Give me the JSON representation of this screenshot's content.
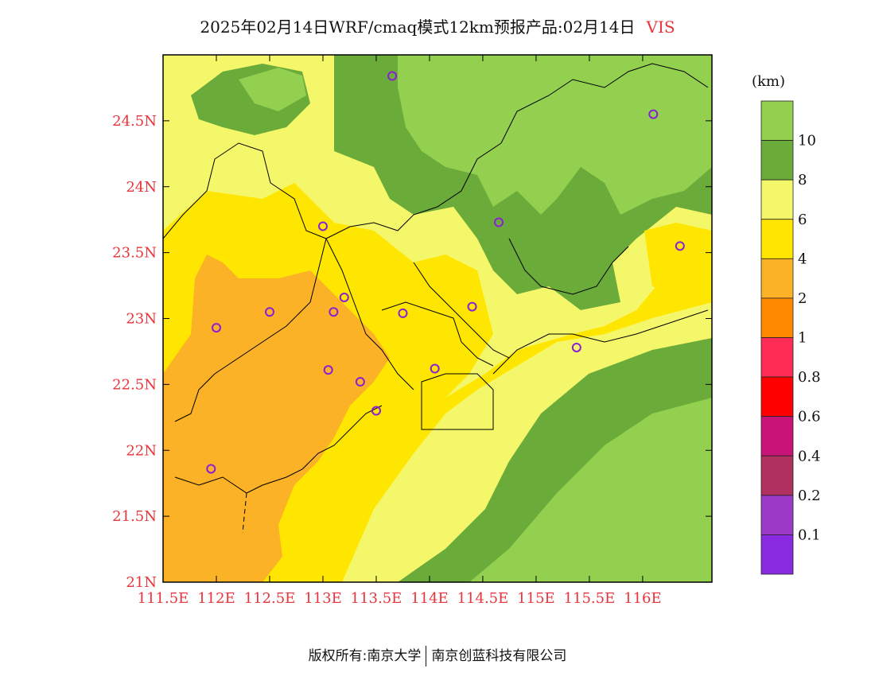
{
  "title": {
    "text": "2025年02月14日WRF/cmaq模式12km预报产品:02月14日",
    "variable": "VIS"
  },
  "colors": {
    "accent": "#e8343a",
    "tick_labels": "#e8343a"
  },
  "map": {
    "lon_range": [
      111.5,
      116.65
    ],
    "lat_range": [
      21.0,
      25.0
    ],
    "lon_ticks": [
      111.5,
      112,
      112.5,
      113,
      113.5,
      114,
      114.5,
      115,
      115.5,
      116
    ],
    "lon_tick_labels": [
      "111.5E",
      "112E",
      "112.5E",
      "113E",
      "113.5E",
      "114E",
      "114.5E",
      "115E",
      "115.5E",
      "116E"
    ],
    "lat_ticks": [
      21,
      21.5,
      22,
      22.5,
      23,
      23.5,
      24,
      24.5
    ],
    "lat_tick_labels": [
      "21N",
      "21.5N",
      "22N",
      "22.5N",
      "23N",
      "23.5N",
      "24N",
      "24.5N"
    ],
    "stations": [
      {
        "lon": 113.65,
        "lat": 24.84
      },
      {
        "lon": 116.1,
        "lat": 24.55
      },
      {
        "lon": 113.0,
        "lat": 23.7
      },
      {
        "lon": 114.65,
        "lat": 23.73
      },
      {
        "lon": 116.35,
        "lat": 23.55
      },
      {
        "lon": 113.2,
        "lat": 23.16
      },
      {
        "lon": 112.5,
        "lat": 23.05
      },
      {
        "lon": 113.1,
        "lat": 23.05
      },
      {
        "lon": 113.75,
        "lat": 23.04
      },
      {
        "lon": 114.4,
        "lat": 23.09
      },
      {
        "lon": 112.0,
        "lat": 22.93
      },
      {
        "lon": 115.38,
        "lat": 22.78
      },
      {
        "lon": 113.05,
        "lat": 22.61
      },
      {
        "lon": 114.05,
        "lat": 22.62
      },
      {
        "lon": 113.35,
        "lat": 22.52
      },
      {
        "lon": 113.5,
        "lat": 22.3
      },
      {
        "lon": 111.95,
        "lat": 21.86
      }
    ],
    "station_color": "#8a1fd6"
  },
  "legend": {
    "unit": "(km)",
    "levels": [
      "10",
      "8",
      "6",
      "4",
      "2",
      "1",
      "0.8",
      "0.6",
      "0.4",
      "0.2",
      "0.1"
    ],
    "colors_top_to_bottom": [
      "#93d050",
      "#6aab3a",
      "#f5f76a",
      "#ffe600",
      "#fbb226",
      "#ff8a00",
      "#ff2d55",
      "#ff0000",
      "#c81379",
      "#b0305f",
      "#9a3ac6",
      "#8a2be2"
    ]
  },
  "footer": {
    "left": "版权所有:南京大学",
    "right": "南京创蓝科技有限公司"
  }
}
